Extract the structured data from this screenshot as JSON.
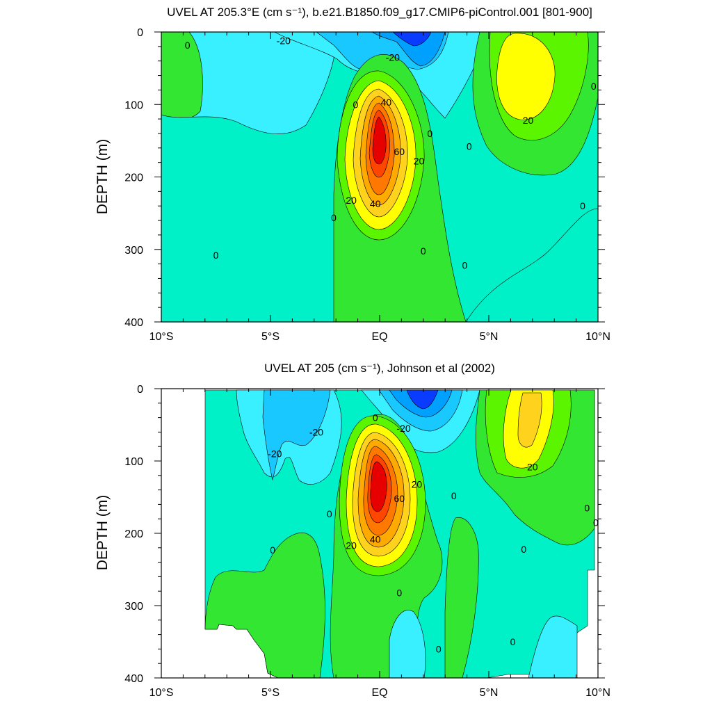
{
  "chart_data": [
    {
      "type": "heatmap",
      "title": "UVEL AT 205.3°E (cm s⁻¹), b.e21.B1850.f09_g17.CMIP6-piControl.001 [801-900]",
      "ylabel": "DEPTH (m)",
      "xlabel": "",
      "x_ticks": [
        "10°S",
        "5°S",
        "EQ",
        "5°N",
        "10°N"
      ],
      "x_tick_values": [
        -10,
        -5,
        0,
        5,
        10
      ],
      "y_ticks": [
        "0",
        "100",
        "200",
        "300",
        "400"
      ],
      "y_tick_values": [
        0,
        100,
        200,
        300,
        400
      ],
      "xlim": [
        -10,
        10
      ],
      "ylim": [
        400,
        0
      ],
      "grid": false,
      "features": [
        {
          "name": "undercurrent-core",
          "lat": 0,
          "depth": 145,
          "value": 70
        },
        {
          "name": "northern-jet",
          "lat": 6.9,
          "depth": 80,
          "value": 25
        },
        {
          "name": "surface-westward-flow",
          "lat": 1.7,
          "depth": 15,
          "value": -35
        },
        {
          "name": "southern-eastward-flow",
          "lat": -9.5,
          "depth": 100,
          "value": 5
        },
        {
          "name": "deep-southern-flow",
          "lat": -8,
          "depth": 370,
          "value": 5
        },
        {
          "name": "eastern-deep-flow",
          "lat": 3,
          "depth": 300,
          "value": 4
        }
      ],
      "contour_labels": [
        {
          "text": "-20",
          "lat": -4.4,
          "depth": 12
        },
        {
          "text": "-20",
          "lat": 0.6,
          "depth": 35
        },
        {
          "text": "0",
          "lat": -8.8,
          "depth": 18
        },
        {
          "text": "0",
          "lat": -1.1,
          "depth": 100
        },
        {
          "text": "40",
          "lat": 0.3,
          "depth": 97
        },
        {
          "text": "60",
          "lat": 0.9,
          "depth": 165
        },
        {
          "text": "20",
          "lat": 1.8,
          "depth": 178
        },
        {
          "text": "0",
          "lat": 2.3,
          "depth": 140
        },
        {
          "text": "0",
          "lat": 4.1,
          "depth": 158
        },
        {
          "text": "20",
          "lat": 6.8,
          "depth": 122
        },
        {
          "text": "0",
          "lat": 9.8,
          "depth": 75
        },
        {
          "text": "20",
          "lat": -1.3,
          "depth": 232
        },
        {
          "text": "40",
          "lat": -0.2,
          "depth": 237
        },
        {
          "text": "0",
          "lat": -2.1,
          "depth": 256
        },
        {
          "text": "0",
          "lat": 9.3,
          "depth": 240
        },
        {
          "text": "0",
          "lat": 2.0,
          "depth": 302
        },
        {
          "text": "0",
          "lat": 3.9,
          "depth": 322
        },
        {
          "text": "0",
          "lat": -7.5,
          "depth": 308
        }
      ]
    },
    {
      "type": "heatmap",
      "title": "UVEL AT 205 (cm s⁻¹), Johnson et al (2002)",
      "ylabel": "DEPTH (m)",
      "xlabel": "",
      "x_ticks": [
        "10°S",
        "5°S",
        "EQ",
        "5°N",
        "10°N"
      ],
      "x_tick_values": [
        -10,
        -5,
        0,
        5,
        10
      ],
      "y_ticks": [
        "0",
        "100",
        "200",
        "300",
        "400"
      ],
      "y_tick_values": [
        0,
        100,
        200,
        300,
        400
      ],
      "xlim": [
        -10,
        10
      ],
      "ylim": [
        400,
        0
      ],
      "grid": false,
      "features": [
        {
          "name": "undercurrent-core",
          "lat": -0.1,
          "depth": 135,
          "value": 75
        },
        {
          "name": "northern-jet",
          "lat": 6.9,
          "depth": 60,
          "value": 30
        },
        {
          "name": "surface-westward-flow",
          "lat": 2.0,
          "depth": 12,
          "value": -40
        },
        {
          "name": "southern-westward-flow",
          "lat": -4.6,
          "depth": 95,
          "value": -20
        },
        {
          "name": "deep-southern-flow",
          "lat": -5,
          "depth": 330,
          "value": 4
        },
        {
          "name": "ridge-at-3.5N",
          "lat": 3.6,
          "depth": 290,
          "value": 5
        }
      ],
      "contour_labels": [
        {
          "text": "-20",
          "lat": -4.8,
          "depth": 90
        },
        {
          "text": "-20",
          "lat": -2.9,
          "depth": 60
        },
        {
          "text": "-20",
          "lat": 1.1,
          "depth": 55
        },
        {
          "text": "0",
          "lat": -0.2,
          "depth": 40
        },
        {
          "text": "20",
          "lat": 1.7,
          "depth": 132
        },
        {
          "text": "60",
          "lat": 0.9,
          "depth": 152
        },
        {
          "text": "40",
          "lat": -0.2,
          "depth": 208
        },
        {
          "text": "20",
          "lat": -1.3,
          "depth": 217
        },
        {
          "text": "0",
          "lat": -2.3,
          "depth": 173
        },
        {
          "text": "0",
          "lat": 3.4,
          "depth": 148
        },
        {
          "text": "20",
          "lat": 7.0,
          "depth": 108
        },
        {
          "text": "0",
          "lat": 9.5,
          "depth": 165
        },
        {
          "text": "0",
          "lat": 9.9,
          "depth": 185
        },
        {
          "text": "0",
          "lat": 6.6,
          "depth": 222
        },
        {
          "text": "0",
          "lat": -4.9,
          "depth": 223
        },
        {
          "text": "0",
          "lat": 0.9,
          "depth": 282
        },
        {
          "text": "0",
          "lat": 2.7,
          "depth": 360
        },
        {
          "text": "0",
          "lat": 6.1,
          "depth": 350
        }
      ]
    }
  ],
  "colors": {
    "-40": "#0a3cff",
    "-30": "#00a0ff",
    "-20": "#19c8ff",
    "-10": "#38f0ff",
    "0": "#00f0c8",
    "10": "#32e632",
    "20": "#5cf500",
    "30": "#b8ff00",
    "40": "#ffff00",
    "50": "#ffd21e",
    "60": "#ffaa00",
    "65": "#ff7800",
    "70": "#ff4600",
    "75": "#e60000",
    "80": "#c00000"
  }
}
